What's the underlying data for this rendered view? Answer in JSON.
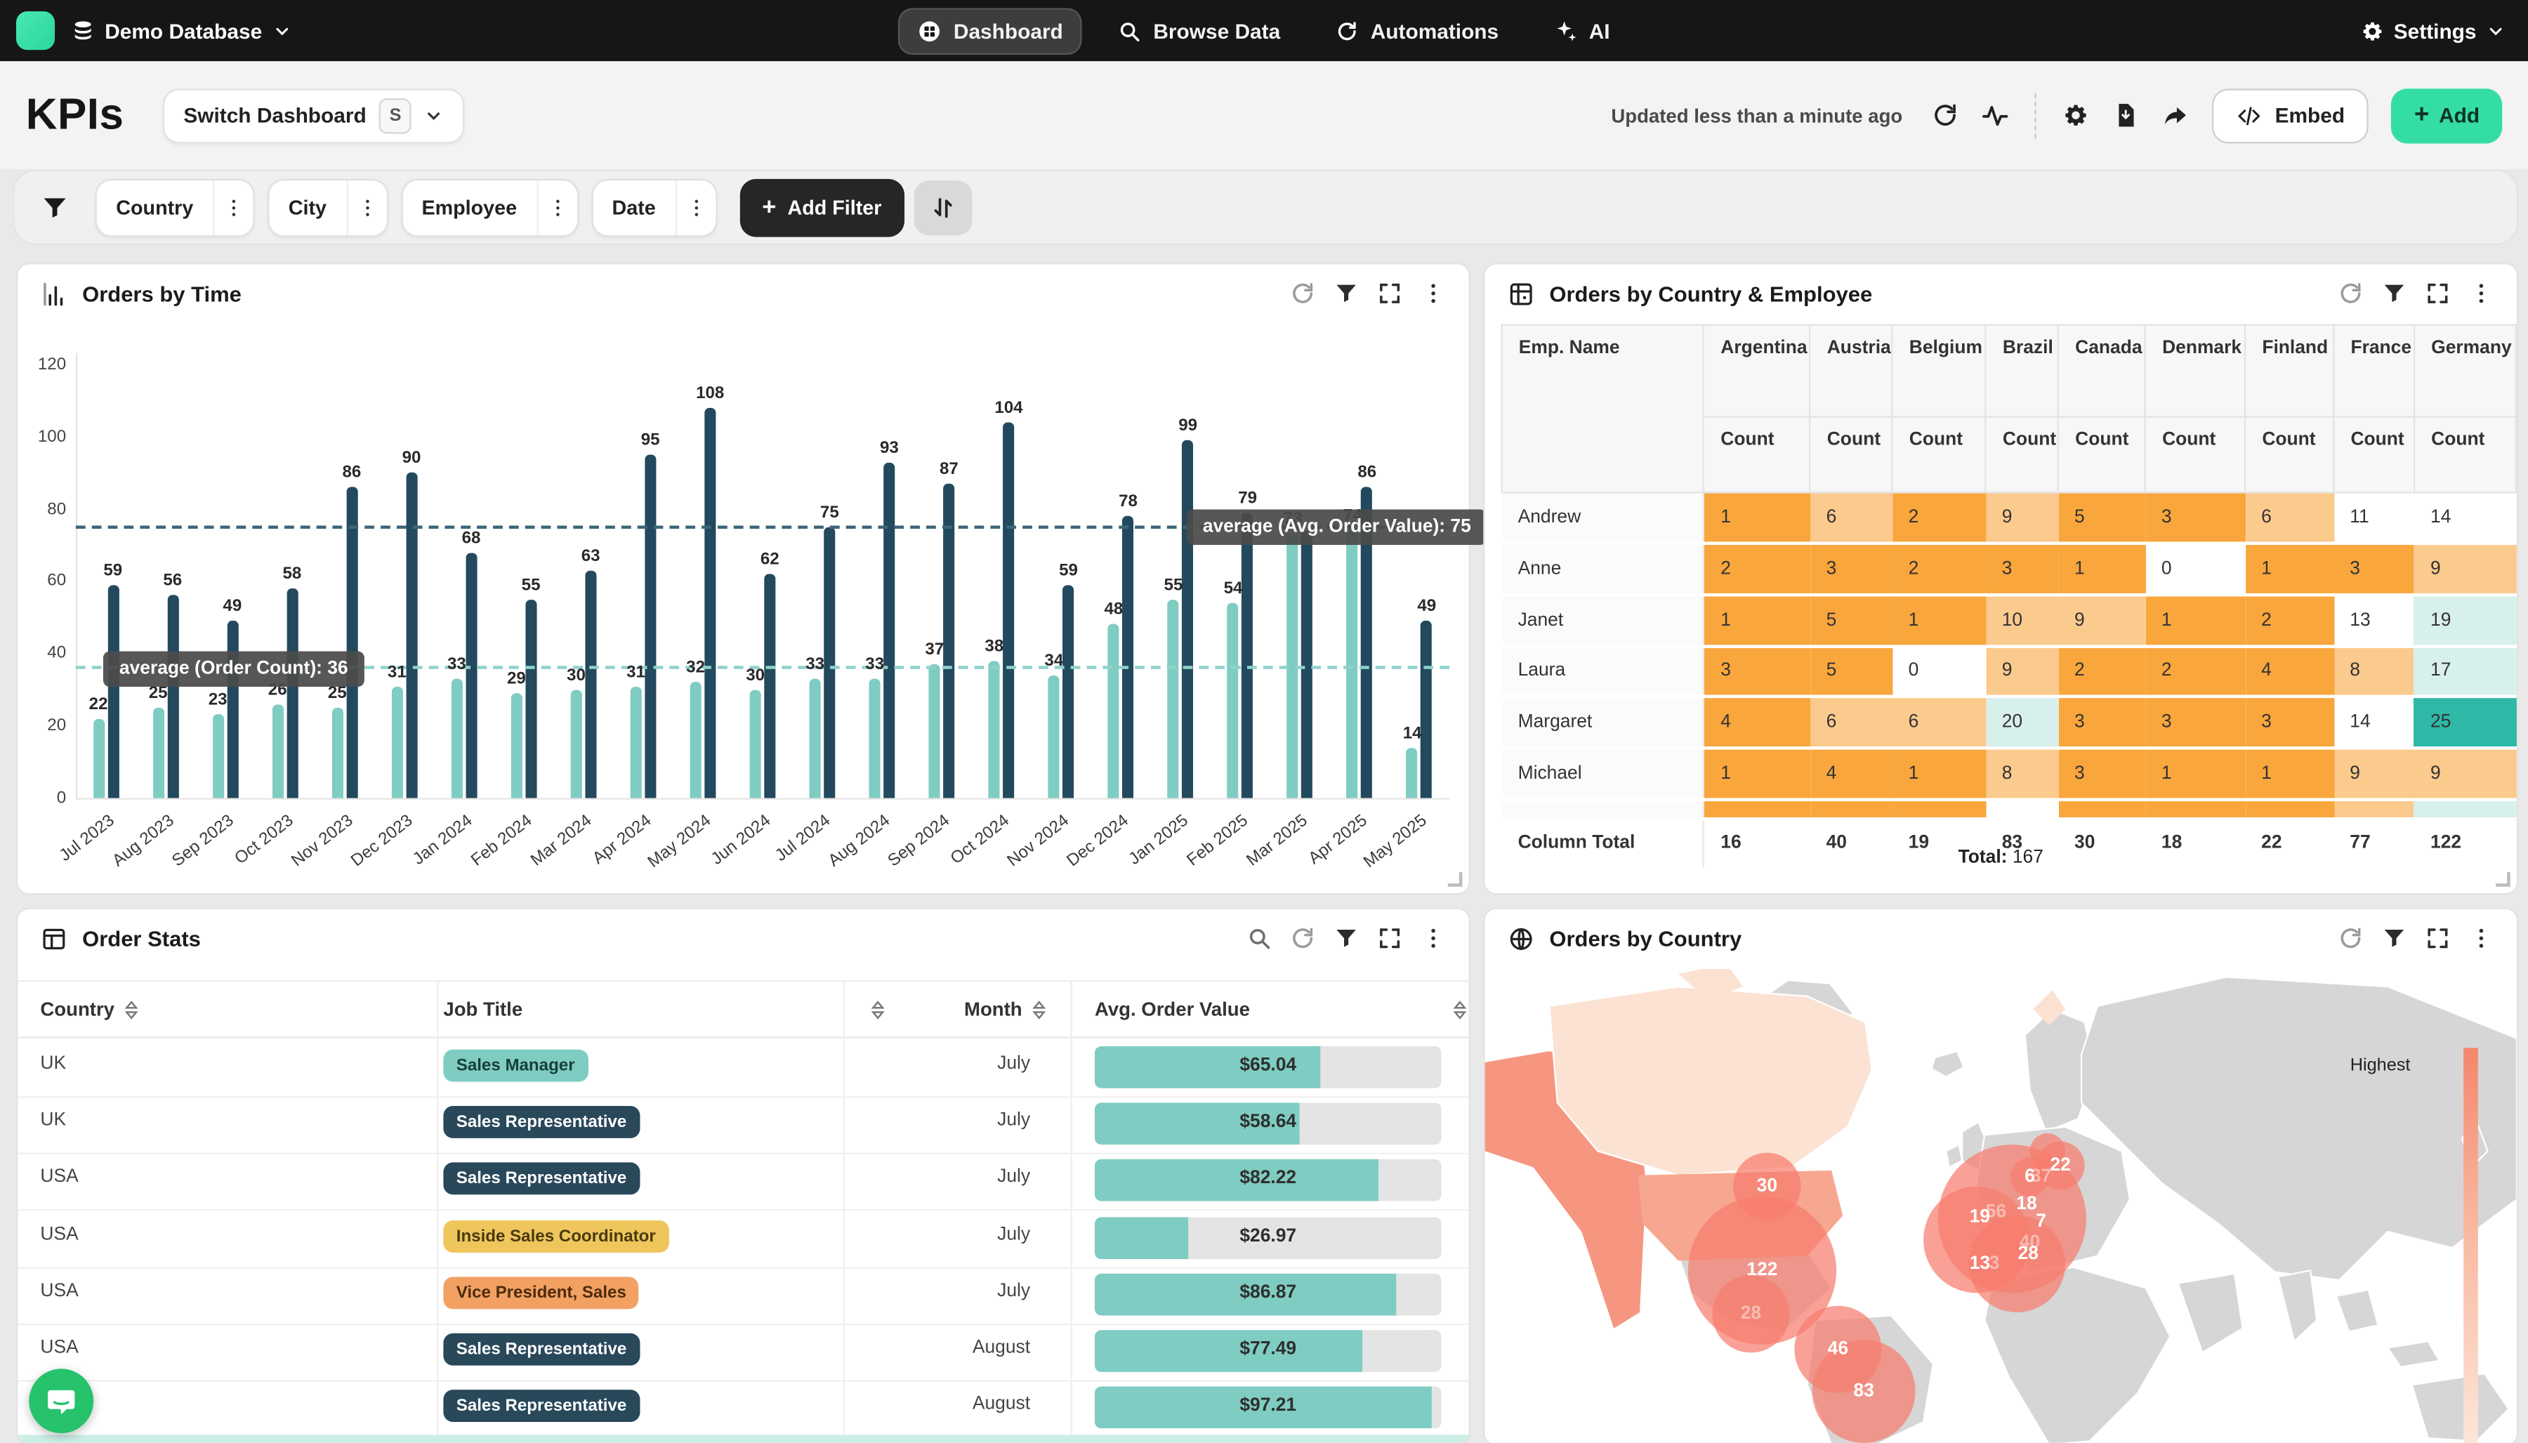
{
  "nav": {
    "brand": "Demo Database",
    "tabs": [
      {
        "label": "Dashboard",
        "active": true
      },
      {
        "label": "Browse Data",
        "active": false
      },
      {
        "label": "Automations",
        "active": false
      },
      {
        "label": "AI",
        "active": false
      }
    ],
    "settings_label": "Settings"
  },
  "header": {
    "title": "KPIs",
    "switch_label": "Switch Dashboard",
    "switch_key": "S",
    "updated_text": "Updated less than a minute ago",
    "embed_label": "Embed",
    "add_label": "Add"
  },
  "filter_bar": {
    "filters": [
      "Country",
      "City",
      "Employee",
      "Date"
    ],
    "add_filter_label": "Add Filter"
  },
  "chart_data": {
    "type": "bar",
    "title": "Orders by Time",
    "categories": [
      "Jul 2023",
      "Aug 2023",
      "Sep 2023",
      "Oct 2023",
      "Nov 2023",
      "Dec 2023",
      "Jan 2024",
      "Feb 2024",
      "Mar 2024",
      "Apr 2024",
      "May 2024",
      "Jun 2024",
      "Jul 2024",
      "Aug 2024",
      "Sep 2024",
      "Oct 2024",
      "Nov 2024",
      "Dec 2024",
      "Jan 2025",
      "Feb 2025",
      "Mar 2025",
      "Apr 2025",
      "May 2025"
    ],
    "series": [
      {
        "name": "Order Count",
        "color": "#7fccc3",
        "values": [
          22,
          25,
          23,
          26,
          25,
          31,
          33,
          29,
          30,
          31,
          32,
          30,
          33,
          33,
          37,
          38,
          34,
          48,
          55,
          54,
          73,
          74,
          14
        ]
      },
      {
        "name": "Avg. Order Value",
        "color": "#23495e",
        "values": [
          59,
          56,
          49,
          58,
          86,
          90,
          68,
          55,
          63,
          95,
          108,
          62,
          75,
          93,
          87,
          104,
          59,
          78,
          99,
          79,
          74,
          86,
          49
        ]
      }
    ],
    "hidden_value_labels": [
      {
        "series": 1,
        "index": 20
      }
    ],
    "average_lines": [
      {
        "label": "average (Order Count): 36",
        "value": 36,
        "color": "#8ed2ca"
      },
      {
        "label": "average (Avg. Order Value): 75",
        "value": 75,
        "color": "#3d6678"
      }
    ],
    "ylim": [
      0,
      120
    ],
    "yticks": [
      0,
      20,
      40,
      60,
      80,
      100,
      120
    ],
    "grid": false,
    "legend_position": "none"
  },
  "cards": {
    "orders_by_time": {
      "title": "Orders by Time"
    },
    "pivot": {
      "title": "Orders by Country & Employee",
      "row_dim": "Emp. Name",
      "measure": "Count",
      "columns": [
        "Argentina",
        "Austria",
        "Belgium",
        "Brazil",
        "Canada",
        "Denmark",
        "Finland",
        "France",
        "Germany"
      ],
      "rows": [
        {
          "name": "Andrew",
          "values": [
            1,
            6,
            2,
            9,
            5,
            3,
            6,
            11,
            14
          ],
          "styles": [
            "o",
            "lo",
            "o",
            "lo",
            "o",
            "o",
            "lo",
            "w",
            "w"
          ]
        },
        {
          "name": "Anne",
          "values": [
            2,
            3,
            2,
            3,
            1,
            0,
            1,
            3,
            9
          ],
          "styles": [
            "o",
            "o",
            "o",
            "o",
            "o",
            "w",
            "o",
            "o",
            "lo"
          ]
        },
        {
          "name": "Janet",
          "values": [
            1,
            5,
            1,
            10,
            9,
            1,
            2,
            13,
            19
          ],
          "styles": [
            "o",
            "o",
            "o",
            "lo",
            "lo",
            "o",
            "o",
            "w",
            "c"
          ]
        },
        {
          "name": "Laura",
          "values": [
            3,
            5,
            0,
            9,
            2,
            2,
            4,
            8,
            17
          ],
          "styles": [
            "o",
            "o",
            "w",
            "lo",
            "o",
            "o",
            "o",
            "lo",
            "c"
          ]
        },
        {
          "name": "Margaret",
          "values": [
            4,
            6,
            6,
            20,
            3,
            3,
            3,
            14,
            25
          ],
          "styles": [
            "o",
            "lo",
            "lo",
            "c",
            "o",
            "o",
            "o",
            "w",
            "t"
          ]
        },
        {
          "name": "Michael",
          "values": [
            1,
            4,
            1,
            8,
            3,
            1,
            1,
            9,
            9
          ],
          "styles": [
            "o",
            "o",
            "o",
            "lo",
            "o",
            "o",
            "o",
            "lo",
            "lo"
          ]
        }
      ],
      "partial_row_styles": [
        "o",
        "o",
        "o",
        "w",
        "o",
        "o",
        "o",
        "lo",
        "c"
      ],
      "total_label": "Column Total",
      "column_totals": [
        16,
        40,
        19,
        83,
        30,
        18,
        22,
        77,
        122
      ],
      "grand_total_label": "Total:",
      "grand_total": "167"
    },
    "order_stats": {
      "title": "Order Stats",
      "columns": [
        "Country",
        "Job Title",
        "Month",
        "Avg. Order Value"
      ],
      "rows": [
        {
          "country": "UK",
          "job_title": "Sales Manager",
          "badge": "teal",
          "month": "July",
          "value": "$65.04",
          "pct": 65
        },
        {
          "country": "UK",
          "job_title": "Sales Representative",
          "badge": "navy",
          "month": "July",
          "value": "$58.64",
          "pct": 59
        },
        {
          "country": "USA",
          "job_title": "Sales Representative",
          "badge": "navy",
          "month": "July",
          "value": "$82.22",
          "pct": 82
        },
        {
          "country": "USA",
          "job_title": "Inside Sales Coordinator",
          "badge": "yellow",
          "month": "July",
          "value": "$26.97",
          "pct": 27
        },
        {
          "country": "USA",
          "job_title": "Vice President, Sales",
          "badge": "orange",
          "month": "July",
          "value": "$86.87",
          "pct": 87
        },
        {
          "country": "USA",
          "job_title": "Sales Representative",
          "badge": "navy",
          "month": "August",
          "value": "$77.49",
          "pct": 77
        },
        {
          "country": "USA",
          "job_title": "Sales Representative",
          "badge": "navy",
          "month": "August",
          "value": "$97.21",
          "pct": 97
        }
      ]
    },
    "map": {
      "title": "Orders by Country",
      "legend_high": "Highest",
      "bubbles": [
        {
          "label": "30",
          "x": 175,
          "y": 172,
          "r": 21,
          "dim": false
        },
        {
          "label": "28",
          "x": 165,
          "y": 251,
          "r": 24,
          "dim": true
        },
        {
          "label": "122",
          "x": 172,
          "y": 224,
          "r": 46,
          "dim": false
        },
        {
          "label": "46",
          "x": 219,
          "y": 273,
          "r": 27,
          "dim": false
        },
        {
          "label": "83",
          "x": 235,
          "y": 299,
          "r": 32,
          "dim": false
        },
        {
          "label": "",
          "x": 327,
          "y": 192,
          "r": 46,
          "dim": false
        },
        {
          "label": "",
          "x": 305,
          "y": 205,
          "r": 33,
          "dim": false
        },
        {
          "label": "",
          "x": 330,
          "y": 220,
          "r": 30,
          "dim": false
        },
        {
          "label": "",
          "x": 349,
          "y": 150,
          "r": 11,
          "dim": false
        },
        {
          "label": "22",
          "x": 357,
          "y": 159,
          "r": 15,
          "dim": false
        },
        {
          "label": "6",
          "x": 338,
          "y": 166,
          "r": 12,
          "dim": false
        },
        {
          "label": "37",
          "x": 345,
          "y": 166,
          "r": 0,
          "dim": true
        },
        {
          "label": "18",
          "x": 336,
          "y": 183,
          "r": 0,
          "dim": false
        },
        {
          "label": "56",
          "x": 317,
          "y": 188,
          "r": 0,
          "dim": true
        },
        {
          "label": "19",
          "x": 307,
          "y": 191,
          "r": 0,
          "dim": false
        },
        {
          "label": "7",
          "x": 345,
          "y": 194,
          "r": 0,
          "dim": false
        },
        {
          "label": "40",
          "x": 338,
          "y": 207,
          "r": 0,
          "dim": true
        },
        {
          "label": "28",
          "x": 337,
          "y": 214,
          "r": 0,
          "dim": false
        },
        {
          "label": "13",
          "x": 307,
          "y": 220,
          "r": 0,
          "dim": false
        },
        {
          "label": "3",
          "x": 316,
          "y": 220,
          "r": 0,
          "dim": true
        }
      ]
    }
  },
  "colors": {
    "accent_green": "#35dda6",
    "bar_dark": "#23495e",
    "bar_light": "#7fccc3",
    "cell_orange": "#f9a63c",
    "cell_light_orange": "#fbca8d",
    "cell_pale_cyan": "#d8f0ec",
    "cell_teal": "#2fb8a6",
    "bubble_salmon": "#f77d6e"
  }
}
